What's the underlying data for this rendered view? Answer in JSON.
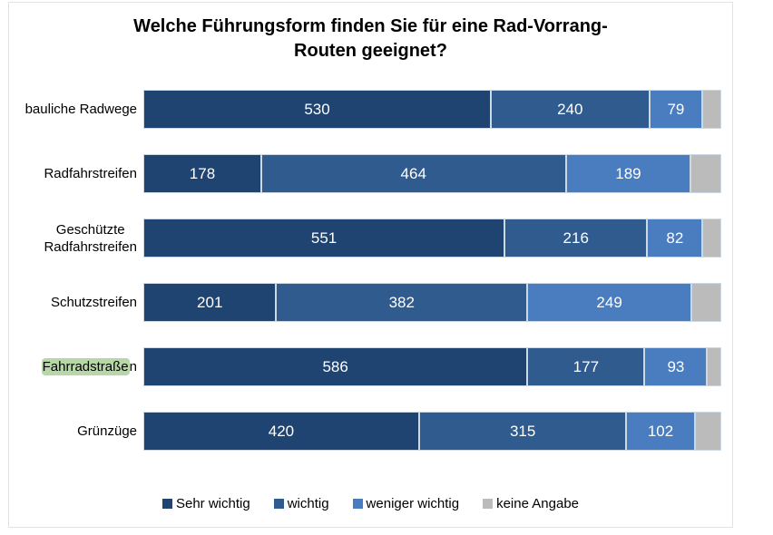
{
  "header": {
    "title_lines": [
      "Welche Führungsform finden Sie für eine Rad-Vorrang-",
      "Routen geeignet?"
    ]
  },
  "chart_data": {
    "type": "bar",
    "orientation": "horizontal",
    "stacked": true,
    "title": "Welche Führungsform finden Sie für eine Rad-Vorrang-Routen geeignet?",
    "categories": [
      "bauliche Radwege",
      "Radfahrstreifen",
      "Geschützte\nRadfahrstreifen",
      "Schutzstreifen",
      "Fahrradstraßen",
      "Grünzüge"
    ],
    "series": [
      {
        "name": "Sehr wichtig",
        "color": "#204472",
        "values": [
          530,
          178,
          551,
          201,
          586,
          420
        ],
        "labels_shown": true
      },
      {
        "name": "wichtig",
        "color": "#2f5b8f",
        "values": [
          240,
          464,
          216,
          382,
          177,
          315
        ],
        "labels_shown": true
      },
      {
        "name": "weniger wichtig",
        "color": "#4a7cc0",
        "values": [
          79,
          189,
          82,
          249,
          93,
          102
        ],
        "labels_shown": true
      },
      {
        "name": "keine Angabe",
        "color": "#bbbbbb",
        "values": [
          26,
          44,
          26,
          43,
          19,
          38
        ],
        "labels_shown": false,
        "estimated": true
      }
    ],
    "axis_total": 875,
    "legend_position": "bottom",
    "grid": false,
    "highlight": {
      "category_index": 4,
      "highlighted_text": "Fahrradstraße",
      "rest_text": "n",
      "color": "#b7d7a9"
    }
  },
  "layout_colors": {
    "frame_border": "#e3e3e3",
    "segment_border": "#ccd8e4",
    "background": "#ffffff"
  }
}
